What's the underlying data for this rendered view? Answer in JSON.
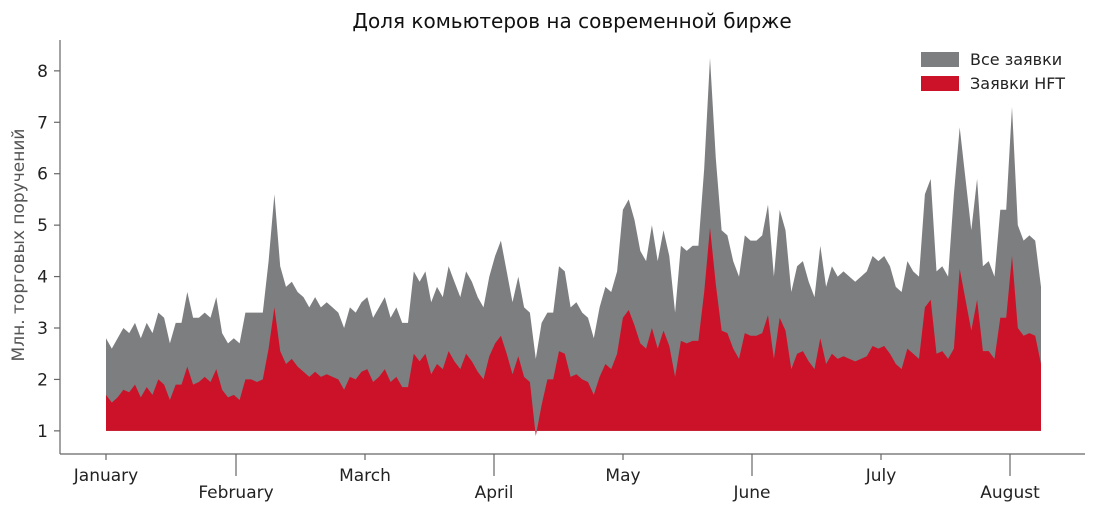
{
  "chart_data": {
    "type": "area",
    "title": "Доля комьютеров на современной бирже",
    "xlabel": "",
    "ylabel": "Млн. торговых поручений",
    "ylim": [
      0.55,
      8.6
    ],
    "yticks": [
      1,
      2,
      3,
      4,
      5,
      6,
      7,
      8
    ],
    "months": [
      "January",
      "February",
      "March",
      "April",
      "May",
      "June",
      "July",
      "August"
    ],
    "baseline": 1,
    "legend_position": "top-right",
    "series": [
      {
        "name": "Все заявки",
        "color": "#7c7e80",
        "values": [
          2.8,
          2.6,
          2.8,
          3.0,
          2.9,
          3.1,
          2.8,
          3.1,
          2.9,
          3.3,
          3.2,
          2.7,
          3.1,
          3.1,
          3.7,
          3.2,
          3.2,
          3.3,
          3.2,
          3.6,
          2.9,
          2.7,
          2.8,
          2.7,
          3.3,
          3.3,
          3.3,
          3.3,
          4.3,
          5.6,
          4.2,
          3.8,
          3.9,
          3.7,
          3.6,
          3.4,
          3.6,
          3.4,
          3.5,
          3.4,
          3.3,
          3.0,
          3.4,
          3.3,
          3.5,
          3.6,
          3.2,
          3.4,
          3.6,
          3.2,
          3.4,
          3.1,
          3.1,
          4.1,
          3.9,
          4.1,
          3.5,
          3.8,
          3.6,
          4.2,
          3.9,
          3.6,
          4.1,
          3.9,
          3.6,
          3.4,
          4.0,
          4.4,
          4.7,
          4.1,
          3.5,
          4.0,
          3.4,
          3.3,
          2.4,
          3.1,
          3.3,
          3.3,
          4.2,
          4.1,
          3.4,
          3.5,
          3.3,
          3.2,
          2.8,
          3.4,
          3.8,
          3.7,
          4.1,
          5.3,
          5.5,
          5.1,
          4.5,
          4.3,
          5.0,
          4.3,
          4.9,
          4.4,
          3.3,
          4.6,
          4.5,
          4.6,
          4.6,
          6.1,
          8.25,
          6.3,
          4.9,
          4.8,
          4.3,
          4.0,
          4.8,
          4.7,
          4.7,
          4.8,
          5.4,
          4.0,
          5.3,
          4.9,
          3.7,
          4.2,
          4.3,
          3.9,
          3.6,
          4.6,
          3.8,
          4.2,
          4.0,
          4.1,
          4.0,
          3.9,
          4.0,
          4.1,
          4.4,
          4.3,
          4.4,
          4.2,
          3.8,
          3.7,
          4.3,
          4.1,
          4.0,
          5.6,
          5.9,
          4.1,
          4.2,
          4.0,
          5.6,
          6.9,
          5.9,
          4.9,
          5.9,
          4.2,
          4.3,
          4.0,
          5.3,
          5.3,
          7.3,
          5.0,
          4.7,
          4.8,
          4.7,
          3.8
        ]
      },
      {
        "name": "Заявки HFT",
        "color": "#cc1228",
        "values": [
          1.7,
          1.55,
          1.65,
          1.8,
          1.75,
          1.9,
          1.65,
          1.85,
          1.7,
          2.0,
          1.9,
          1.6,
          1.9,
          1.9,
          2.25,
          1.9,
          1.95,
          2.05,
          1.95,
          2.2,
          1.8,
          1.65,
          1.7,
          1.6,
          2.0,
          2.0,
          1.95,
          2.0,
          2.6,
          3.4,
          2.55,
          2.3,
          2.4,
          2.25,
          2.15,
          2.05,
          2.15,
          2.05,
          2.1,
          2.05,
          2.0,
          1.8,
          2.05,
          2.0,
          2.15,
          2.2,
          1.95,
          2.05,
          2.2,
          1.95,
          2.05,
          1.85,
          1.85,
          2.5,
          2.35,
          2.5,
          2.1,
          2.3,
          2.2,
          2.55,
          2.35,
          2.2,
          2.5,
          2.35,
          2.15,
          2.0,
          2.45,
          2.7,
          2.85,
          2.5,
          2.1,
          2.45,
          2.05,
          1.95,
          0.9,
          1.5,
          2.0,
          2.0,
          2.55,
          2.5,
          2.05,
          2.1,
          2.0,
          1.95,
          1.7,
          2.05,
          2.3,
          2.2,
          2.5,
          3.2,
          3.35,
          3.05,
          2.7,
          2.6,
          3.0,
          2.6,
          2.95,
          2.65,
          2.05,
          2.75,
          2.7,
          2.75,
          2.75,
          3.7,
          4.95,
          3.85,
          2.95,
          2.9,
          2.6,
          2.4,
          2.9,
          2.85,
          2.85,
          2.9,
          3.25,
          2.4,
          3.2,
          2.95,
          2.2,
          2.5,
          2.55,
          2.35,
          2.2,
          2.8,
          2.3,
          2.5,
          2.4,
          2.45,
          2.4,
          2.35,
          2.4,
          2.45,
          2.65,
          2.6,
          2.65,
          2.5,
          2.3,
          2.2,
          2.6,
          2.5,
          2.4,
          3.4,
          3.55,
          2.5,
          2.55,
          2.4,
          2.6,
          4.15,
          3.55,
          2.95,
          3.55,
          2.55,
          2.55,
          2.4,
          3.2,
          3.2,
          4.4,
          3.0,
          2.85,
          2.9,
          2.85,
          2.3
        ]
      }
    ]
  }
}
